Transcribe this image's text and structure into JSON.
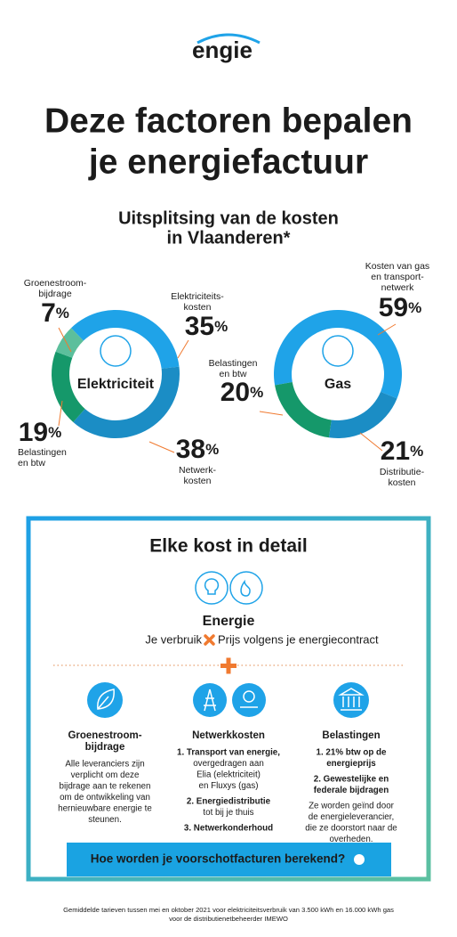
{
  "logo": "engie",
  "title": [
    "Deze factoren bepalen",
    "je energiefactuur"
  ],
  "breakdown": {
    "title": [
      "Uitsplitsing van de kosten",
      "in Vlaanderen*"
    ],
    "charts": [
      {
        "center": "Elektriciteit",
        "segments": [
          {
            "label": [
              "Elektriciteits-",
              "kosten"
            ],
            "value": 35,
            "value_label": "35%",
            "color": "#1fa3e8"
          },
          {
            "label": [
              "Netwerk-",
              "kosten"
            ],
            "value": 38,
            "value_label": "38%",
            "color": "#1b8dc5"
          },
          {
            "label": [
              "Belastingen",
              "en btw"
            ],
            "value": 19,
            "value_label": "19%",
            "color": "#15986a"
          },
          {
            "label": [
              "Groenestroom-",
              "bijdrage"
            ],
            "value": 7,
            "value_label": "7%",
            "color": "#5cbf9c"
          }
        ]
      },
      {
        "center": "Gas",
        "segments": [
          {
            "label": [
              "Kosten van gas",
              "en transport-",
              "netwerk"
            ],
            "value": 59,
            "value_label": "59%",
            "color": "#1fa3e8"
          },
          {
            "label": [
              "Distributie-",
              "kosten"
            ],
            "value": 21,
            "value_label": "21%",
            "color": "#1b8dc5"
          },
          {
            "label": [
              "Belastingen",
              "en btw"
            ],
            "value": 20,
            "value_label": "20%",
            "color": "#15986a"
          }
        ]
      }
    ]
  },
  "detail": {
    "title": "Elke kost in detail",
    "energy": {
      "title": "Energie",
      "formula": [
        "Je verbruik",
        "Prijs volgens je energiecontract"
      ]
    },
    "columns": [
      {
        "title": [
          "Groenestroom-",
          "bijdrage"
        ],
        "items": [
          {
            "text": [
              "Alle leveranciers zijn",
              "verplicht om deze",
              "bijdrage aan te rekenen",
              "om de ontwikkeling van",
              "hernieuwbare energie te",
              "steunen."
            ]
          }
        ]
      },
      {
        "title": [
          "Netwerkkosten"
        ],
        "items": [
          {
            "bold": [
              "1. Transport van energie,"
            ],
            "text": [
              "overgedragen aan",
              "Elia (elektriciteit)",
              "en Fluxys (gas)"
            ]
          },
          {
            "bold": [
              "2. Energiedistributie"
            ],
            "text": [
              "tot bij je thuis"
            ]
          },
          {
            "bold": [
              "3. Netwerkonderhoud"
            ]
          }
        ]
      },
      {
        "title": [
          "Belastingen"
        ],
        "items": [
          {
            "bold": [
              "1. 21% btw op de",
              "energieprijs"
            ]
          },
          {
            "bold": [
              "2. Gewestelijke en",
              "federale bijdragen"
            ]
          },
          {
            "text": [
              "Ze worden geïnd door",
              "de energieleverancier,",
              "die ze doorstort naar de",
              "overheden."
            ]
          }
        ]
      }
    ]
  },
  "button": "Hoe worden je voorschotfacturen berekend?",
  "footnote": [
    "Gemiddelde tarieven tussen mei en oktober 2021 voor elektriciteitsverbruik van 3.500 kWh en 16.000 kWh gas",
    "voor de distributienetbeheerder IMEWO"
  ]
}
